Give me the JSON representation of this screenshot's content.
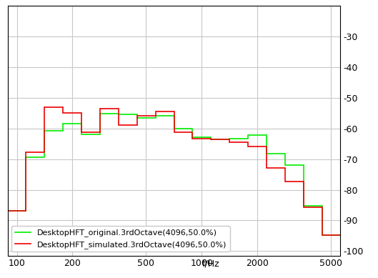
{
  "chart_data": {
    "type": "step",
    "x_label": "f/Hz",
    "bins": [
      89.1,
      112.2,
      141.3,
      177.8,
      223.9,
      281.8,
      354.8,
      446.7,
      562.3,
      707.9,
      891.3,
      1122.0,
      1412.5,
      1778.3,
      2238.7,
      2818.4,
      3548.1,
      4466.8,
      5623.4
    ],
    "series": [
      {
        "name": "DesktopHFT_original.3rdOctave(4096,50.0%)",
        "color": "#00ee00",
        "values": [
          -86.8,
          -69.4,
          -60.9,
          -58.5,
          -62.0,
          -55.3,
          -55.5,
          -56.6,
          -56.0,
          -60.0,
          -63.0,
          -63.6,
          -63.4,
          -62.3,
          -68.3,
          -71.9,
          -85.3,
          -94.7
        ]
      },
      {
        "name": "DesktopHFT_simulated.3rdOctave(4096,50.0%)",
        "color": "#ee0000",
        "values": [
          -86.8,
          -67.7,
          -53.0,
          -55.0,
          -61.3,
          -53.6,
          -59.0,
          -56.0,
          -54.5,
          -61.3,
          -63.4,
          -63.6,
          -64.5,
          -66.0,
          -72.8,
          -77.4,
          -85.7,
          -94.7
        ]
      }
    ],
    "log": "x",
    "xlim": [
      89.1,
      5600
    ],
    "xticks": [
      100,
      200,
      500,
      1000,
      2000,
      5000
    ],
    "ylim": [
      -101.5,
      -20
    ],
    "yticks": [
      -100,
      -90,
      -80,
      -70,
      -60,
      -50,
      -40,
      -30
    ],
    "grid": true,
    "legend": "lower left"
  }
}
